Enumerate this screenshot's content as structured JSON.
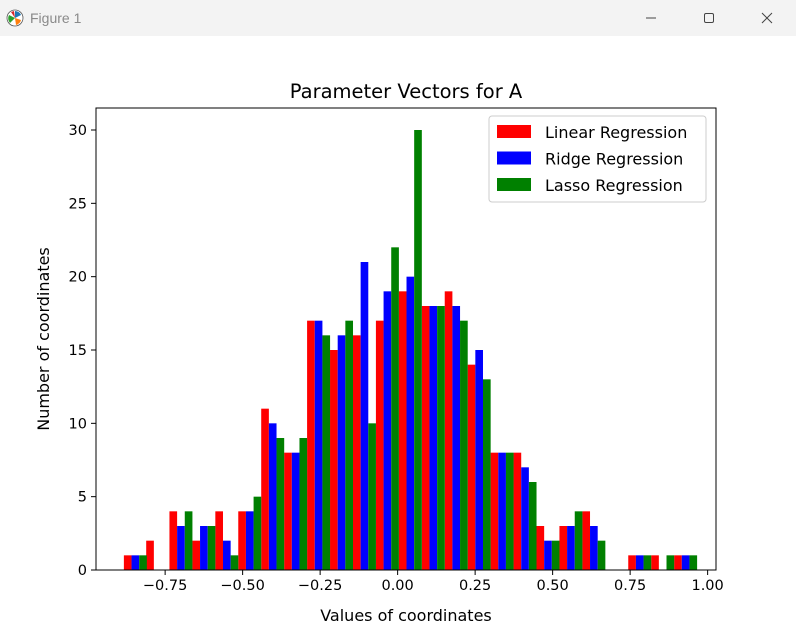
{
  "window": {
    "title": "Figure 1",
    "controls": [
      "minimize",
      "maximize",
      "close"
    ]
  },
  "colors": {
    "linear": "#ff0000",
    "ridge": "#0000ff",
    "lasso": "#008000"
  },
  "chart_data": {
    "type": "bar",
    "title": "Parameter Vectors for A",
    "xlabel": "Values of coordinates",
    "ylabel": "Number of coordinates",
    "xlim": [
      -0.973,
      1.027
    ],
    "ylim": [
      0,
      31.5
    ],
    "xticks": [
      -0.75,
      -0.5,
      -0.25,
      0.0,
      0.25,
      0.5,
      0.75,
      1.0
    ],
    "xtick_labels": [
      "−0.75",
      "−0.50",
      "−0.25",
      "0.00",
      "0.25",
      "0.50",
      "0.75",
      "1.00"
    ],
    "yticks": [
      0,
      5,
      10,
      15,
      20,
      25,
      30
    ],
    "ytick_labels": [
      "0",
      "5",
      "10",
      "15",
      "20",
      "25",
      "30"
    ],
    "bin_centers": [
      -0.846,
      -0.774,
      -0.699,
      -0.625,
      -0.551,
      -0.477,
      -0.403,
      -0.329,
      -0.255,
      -0.181,
      -0.107,
      -0.033,
      0.041,
      0.115,
      0.189,
      0.263,
      0.337,
      0.411,
      0.485,
      0.559,
      0.633,
      0.707,
      0.781,
      0.855,
      0.929
    ],
    "bar_width": 0.0247,
    "legend_position": "top-right",
    "series": [
      {
        "name": "Linear Regression",
        "color": "#ff0000",
        "offset": -1,
        "values": [
          1,
          2,
          4,
          2,
          4,
          4,
          11,
          8,
          17,
          15,
          16,
          17,
          19,
          18,
          19,
          14,
          8,
          8,
          3,
          3,
          4,
          0,
          1,
          1,
          1
        ]
      },
      {
        "name": "Ridge Regression",
        "color": "#0000ff",
        "offset": 0,
        "values": [
          1,
          0,
          3,
          3,
          2,
          4,
          10,
          8,
          17,
          16,
          21,
          19,
          20,
          18,
          18,
          15,
          8,
          7,
          2,
          3,
          3,
          0,
          1,
          0,
          1
        ]
      },
      {
        "name": "Lasso Regression",
        "color": "#008000",
        "offset": 1,
        "values": [
          1,
          0,
          4,
          3,
          1,
          5,
          9,
          9,
          16,
          17,
          10,
          22,
          30,
          18,
          17,
          13,
          8,
          6,
          2,
          4,
          2,
          0,
          1,
          1,
          1
        ]
      }
    ]
  }
}
